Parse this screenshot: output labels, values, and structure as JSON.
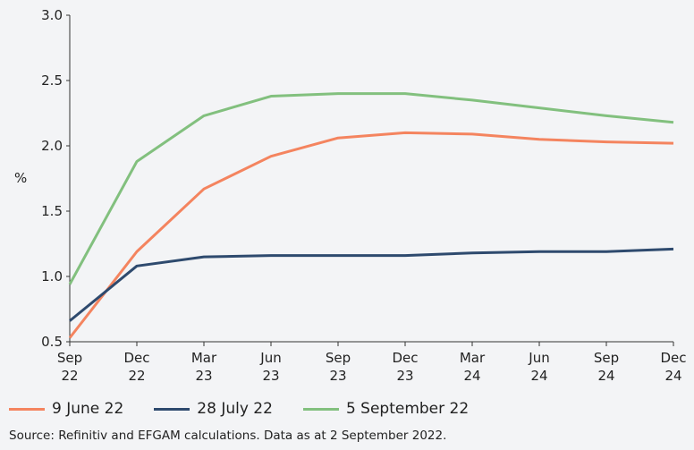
{
  "chart_data": {
    "type": "line",
    "title": "",
    "xlabel": "",
    "ylabel": "%",
    "ylim": [
      0.5,
      3.0
    ],
    "yticks": [
      "0.5",
      "1.0",
      "1.5",
      "2.0",
      "2.5",
      "3.0"
    ],
    "categories": [
      [
        "Sep",
        "22"
      ],
      [
        "Dec",
        "22"
      ],
      [
        "Mar",
        "23"
      ],
      [
        "Jun",
        "23"
      ],
      [
        "Sep",
        "23"
      ],
      [
        "Dec",
        "23"
      ],
      [
        "Mar",
        "24"
      ],
      [
        "Jun",
        "24"
      ],
      [
        "Sep",
        "24"
      ],
      [
        "Dec",
        "24"
      ]
    ],
    "grid": false,
    "legend_position": "bottom-left",
    "series": [
      {
        "name": "9 June 22",
        "color": "#f4845f",
        "values": [
          0.53,
          1.19,
          1.67,
          1.92,
          2.06,
          2.1,
          2.09,
          2.05,
          2.03,
          2.02
        ]
      },
      {
        "name": "28 July 22",
        "color": "#2e4a6e",
        "values": [
          0.66,
          1.08,
          1.15,
          1.16,
          1.16,
          1.16,
          1.18,
          1.19,
          1.19,
          1.21
        ]
      },
      {
        "name": "5 September 22",
        "color": "#82c07e",
        "values": [
          0.94,
          1.88,
          2.23,
          2.38,
          2.4,
          2.4,
          2.35,
          2.29,
          2.23,
          2.18
        ]
      }
    ]
  },
  "source": "Source: Refinitiv and EFGAM calculations. Data as at 2 September 2022."
}
